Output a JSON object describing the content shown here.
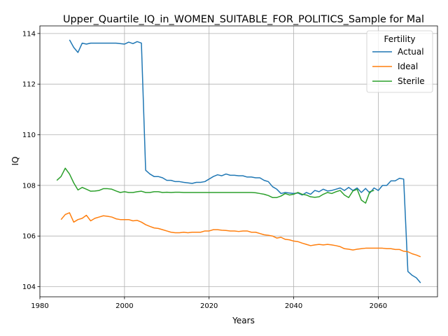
{
  "chart_data": {
    "type": "line",
    "title": "Upper_Quartile_IQ_in_WOMEN_SUITABLE_FOR_POLITICS_Sample for Mal",
    "xlabel": "Years",
    "ylabel": "IQ",
    "xlim": [
      1980,
      2074
    ],
    "ylim": [
      103.6,
      114.3
    ],
    "x_ticks": [
      "1980",
      "2000",
      "2020",
      "2040",
      "2060"
    ],
    "y_ticks": [
      "104",
      "106",
      "108",
      "110",
      "112",
      "114"
    ],
    "grid": true,
    "legend": {
      "title": "Fertility",
      "placement": "top-right"
    },
    "series": [
      {
        "name": "Actual",
        "color": "#1f77b4",
        "points": [
          [
            1987,
            113.75
          ],
          [
            1988,
            113.45
          ],
          [
            1989,
            113.25
          ],
          [
            1990,
            113.62
          ],
          [
            1991,
            113.58
          ],
          [
            1992,
            113.62
          ],
          [
            1994,
            113.62
          ],
          [
            1996,
            113.62
          ],
          [
            1998,
            113.62
          ],
          [
            2000,
            113.58
          ],
          [
            2001,
            113.66
          ],
          [
            2002,
            113.6
          ],
          [
            2003,
            113.68
          ],
          [
            2004,
            113.62
          ],
          [
            2005,
            108.6
          ],
          [
            2006,
            108.45
          ],
          [
            2007,
            108.35
          ],
          [
            2008,
            108.35
          ],
          [
            2009,
            108.3
          ],
          [
            2010,
            108.2
          ],
          [
            2011,
            108.2
          ],
          [
            2012,
            108.15
          ],
          [
            2013,
            108.15
          ],
          [
            2014,
            108.12
          ],
          [
            2015,
            108.1
          ],
          [
            2016,
            108.08
          ],
          [
            2017,
            108.12
          ],
          [
            2018,
            108.12
          ],
          [
            2019,
            108.15
          ],
          [
            2020,
            108.25
          ],
          [
            2021,
            108.35
          ],
          [
            2022,
            108.42
          ],
          [
            2023,
            108.38
          ],
          [
            2024,
            108.45
          ],
          [
            2025,
            108.4
          ],
          [
            2026,
            108.4
          ],
          [
            2027,
            108.38
          ],
          [
            2028,
            108.38
          ],
          [
            2029,
            108.33
          ],
          [
            2030,
            108.33
          ],
          [
            2031,
            108.3
          ],
          [
            2032,
            108.3
          ],
          [
            2033,
            108.2
          ],
          [
            2034,
            108.15
          ],
          [
            2035,
            107.95
          ],
          [
            2036,
            107.85
          ],
          [
            2037,
            107.68
          ],
          [
            2038,
            107.72
          ],
          [
            2039,
            107.7
          ],
          [
            2040,
            107.68
          ],
          [
            2041,
            107.7
          ],
          [
            2042,
            107.62
          ],
          [
            2043,
            107.72
          ],
          [
            2044,
            107.65
          ],
          [
            2045,
            107.8
          ],
          [
            2046,
            107.75
          ],
          [
            2047,
            107.85
          ],
          [
            2048,
            107.78
          ],
          [
            2049,
            107.8
          ],
          [
            2050,
            107.85
          ],
          [
            2051,
            107.9
          ],
          [
            2052,
            107.8
          ],
          [
            2053,
            107.92
          ],
          [
            2054,
            107.8
          ],
          [
            2055,
            107.9
          ],
          [
            2056,
            107.72
          ],
          [
            2057,
            107.88
          ],
          [
            2058,
            107.7
          ],
          [
            2059,
            107.9
          ],
          [
            2060,
            107.8
          ],
          [
            2061,
            108.0
          ],
          [
            2062,
            108.0
          ],
          [
            2063,
            108.18
          ],
          [
            2064,
            108.18
          ],
          [
            2065,
            108.28
          ],
          [
            2066,
            108.25
          ],
          [
            2067,
            104.6
          ],
          [
            2068,
            104.45
          ],
          [
            2069,
            104.35
          ],
          [
            2070,
            104.15
          ]
        ]
      },
      {
        "name": "Ideal",
        "color": "#ff7f0e",
        "points": [
          [
            1985,
            106.65
          ],
          [
            1986,
            106.85
          ],
          [
            1987,
            106.92
          ],
          [
            1988,
            106.55
          ],
          [
            1989,
            106.65
          ],
          [
            1990,
            106.7
          ],
          [
            1991,
            106.82
          ],
          [
            1992,
            106.6
          ],
          [
            1993,
            106.7
          ],
          [
            1994,
            106.75
          ],
          [
            1995,
            106.8
          ],
          [
            1996,
            106.78
          ],
          [
            1997,
            106.75
          ],
          [
            1998,
            106.68
          ],
          [
            1999,
            106.65
          ],
          [
            2000,
            106.65
          ],
          [
            2001,
            106.65
          ],
          [
            2002,
            106.6
          ],
          [
            2003,
            106.62
          ],
          [
            2004,
            106.55
          ],
          [
            2005,
            106.45
          ],
          [
            2006,
            106.38
          ],
          [
            2007,
            106.32
          ],
          [
            2008,
            106.3
          ],
          [
            2009,
            106.25
          ],
          [
            2010,
            106.2
          ],
          [
            2011,
            106.15
          ],
          [
            2012,
            106.13
          ],
          [
            2013,
            106.13
          ],
          [
            2014,
            106.15
          ],
          [
            2015,
            106.13
          ],
          [
            2016,
            106.15
          ],
          [
            2017,
            106.15
          ],
          [
            2018,
            106.15
          ],
          [
            2019,
            106.2
          ],
          [
            2020,
            106.2
          ],
          [
            2021,
            106.25
          ],
          [
            2022,
            106.25
          ],
          [
            2023,
            106.23
          ],
          [
            2024,
            106.22
          ],
          [
            2025,
            106.2
          ],
          [
            2026,
            106.2
          ],
          [
            2027,
            106.18
          ],
          [
            2028,
            106.2
          ],
          [
            2029,
            106.2
          ],
          [
            2030,
            106.15
          ],
          [
            2031,
            106.15
          ],
          [
            2032,
            106.1
          ],
          [
            2033,
            106.05
          ],
          [
            2034,
            106.03
          ],
          [
            2035,
            106.0
          ],
          [
            2036,
            105.92
          ],
          [
            2037,
            105.95
          ],
          [
            2038,
            105.87
          ],
          [
            2039,
            105.85
          ],
          [
            2040,
            105.8
          ],
          [
            2041,
            105.78
          ],
          [
            2042,
            105.72
          ],
          [
            2043,
            105.67
          ],
          [
            2044,
            105.62
          ],
          [
            2045,
            105.65
          ],
          [
            2046,
            105.67
          ],
          [
            2047,
            105.65
          ],
          [
            2048,
            105.67
          ],
          [
            2049,
            105.65
          ],
          [
            2050,
            105.62
          ],
          [
            2051,
            105.58
          ],
          [
            2052,
            105.5
          ],
          [
            2053,
            105.48
          ],
          [
            2054,
            105.45
          ],
          [
            2055,
            105.48
          ],
          [
            2056,
            105.5
          ],
          [
            2057,
            105.52
          ],
          [
            2058,
            105.52
          ],
          [
            2059,
            105.52
          ],
          [
            2060,
            105.52
          ],
          [
            2061,
            105.52
          ],
          [
            2062,
            105.5
          ],
          [
            2063,
            105.5
          ],
          [
            2064,
            105.47
          ],
          [
            2065,
            105.47
          ],
          [
            2066,
            105.4
          ],
          [
            2067,
            105.38
          ],
          [
            2068,
            105.3
          ],
          [
            2069,
            105.25
          ],
          [
            2070,
            105.18
          ]
        ]
      },
      {
        "name": "Sterile",
        "color": "#2ca02c",
        "points": [
          [
            1984,
            108.2
          ],
          [
            1985,
            108.35
          ],
          [
            1986,
            108.68
          ],
          [
            1987,
            108.45
          ],
          [
            1988,
            108.1
          ],
          [
            1989,
            107.82
          ],
          [
            1990,
            107.92
          ],
          [
            1991,
            107.85
          ],
          [
            1992,
            107.77
          ],
          [
            1993,
            107.78
          ],
          [
            1994,
            107.8
          ],
          [
            1995,
            107.87
          ],
          [
            1996,
            107.87
          ],
          [
            1997,
            107.85
          ],
          [
            1998,
            107.78
          ],
          [
            1999,
            107.72
          ],
          [
            2000,
            107.75
          ],
          [
            2001,
            107.72
          ],
          [
            2002,
            107.72
          ],
          [
            2003,
            107.75
          ],
          [
            2004,
            107.77
          ],
          [
            2005,
            107.72
          ],
          [
            2006,
            107.72
          ],
          [
            2007,
            107.75
          ],
          [
            2008,
            107.75
          ],
          [
            2009,
            107.72
          ],
          [
            2010,
            107.73
          ],
          [
            2011,
            107.72
          ],
          [
            2012,
            107.73
          ],
          [
            2013,
            107.73
          ],
          [
            2014,
            107.72
          ],
          [
            2015,
            107.72
          ],
          [
            2020,
            107.72
          ],
          [
            2025,
            107.72
          ],
          [
            2030,
            107.72
          ],
          [
            2031,
            107.71
          ],
          [
            2032,
            107.68
          ],
          [
            2033,
            107.65
          ],
          [
            2034,
            107.6
          ],
          [
            2035,
            107.52
          ],
          [
            2036,
            107.52
          ],
          [
            2037,
            107.58
          ],
          [
            2038,
            107.68
          ],
          [
            2039,
            107.62
          ],
          [
            2040,
            107.65
          ],
          [
            2041,
            107.72
          ],
          [
            2042,
            107.65
          ],
          [
            2043,
            107.62
          ],
          [
            2044,
            107.55
          ],
          [
            2045,
            107.53
          ],
          [
            2046,
            107.55
          ],
          [
            2047,
            107.65
          ],
          [
            2048,
            107.72
          ],
          [
            2049,
            107.68
          ],
          [
            2050,
            107.75
          ],
          [
            2051,
            107.8
          ],
          [
            2052,
            107.62
          ],
          [
            2053,
            107.52
          ],
          [
            2054,
            107.78
          ],
          [
            2055,
            107.85
          ],
          [
            2056,
            107.42
          ],
          [
            2057,
            107.3
          ],
          [
            2058,
            107.75
          ],
          [
            2059,
            107.8
          ]
        ]
      }
    ]
  }
}
